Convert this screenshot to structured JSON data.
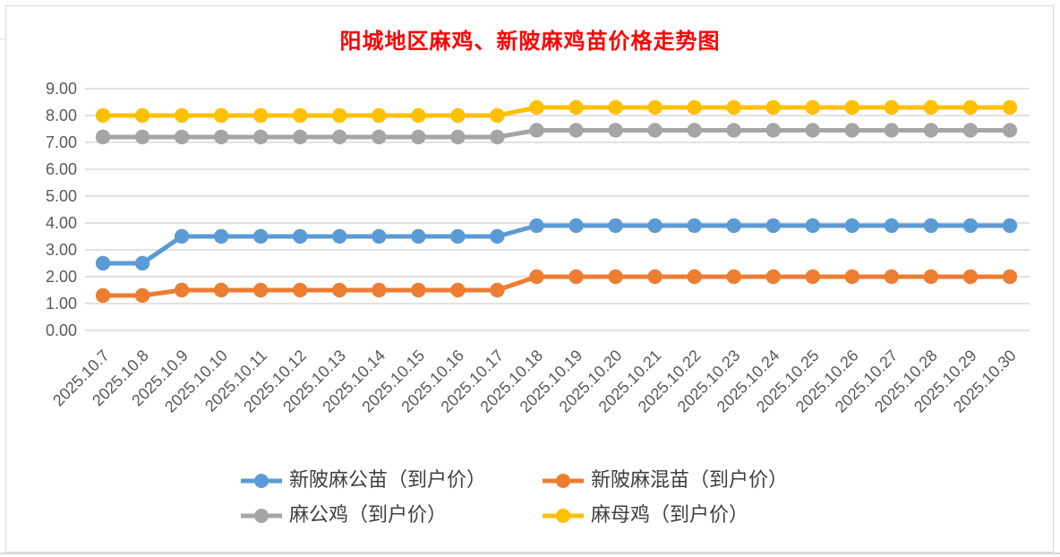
{
  "page": {
    "title": "阳城地区麻鸡、新陂麻鸡苗价格走势图"
  },
  "colors": {
    "title": "#FF0000",
    "axis_label": "#595959",
    "gridline": "#D9D9D9",
    "chart_border": "#D9D9D9",
    "background": "#FFFFFF",
    "legend_text": "#3F3F3F"
  },
  "chart_data": {
    "type": "line",
    "title": "阳城地区麻鸡、新陂麻鸡苗价格走势图",
    "xlabel": "",
    "ylabel": "",
    "ylim": [
      0,
      9
    ],
    "y_tick_step": 1,
    "y_tick_labels": [
      "0.00",
      "1.00",
      "2.00",
      "3.00",
      "4.00",
      "5.00",
      "6.00",
      "7.00",
      "8.00",
      "9.00"
    ],
    "grid": true,
    "marker": "circle",
    "legend_position": "bottom",
    "categories": [
      "2025.10.7",
      "2025.10.8",
      "2025.10.9",
      "2025.10.10",
      "2025.10.11",
      "2025.10.12",
      "2025.10.13",
      "2025.10.14",
      "2025.10.15",
      "2025.10.16",
      "2025.10.17",
      "2025.10.18",
      "2025.10.19",
      "2025.10.20",
      "2025.10.21",
      "2025.10.22",
      "2025.10.23",
      "2025.10.24",
      "2025.10.25",
      "2025.10.26",
      "2025.10.27",
      "2025.10.28",
      "2025.10.29",
      "2025.10.30"
    ],
    "series": [
      {
        "name": "新陂麻公苗（到户价）",
        "color": "#5B9BD5",
        "values": [
          2.5,
          2.5,
          3.5,
          3.5,
          3.5,
          3.5,
          3.5,
          3.5,
          3.5,
          3.5,
          3.5,
          3.9,
          3.9,
          3.9,
          3.9,
          3.9,
          3.9,
          3.9,
          3.9,
          3.9,
          3.9,
          3.9,
          3.9,
          3.9
        ]
      },
      {
        "name": "新陂麻混苗（到户价）",
        "color": "#ED7D31",
        "values": [
          1.3,
          1.3,
          1.5,
          1.5,
          1.5,
          1.5,
          1.5,
          1.5,
          1.5,
          1.5,
          1.5,
          2.0,
          2.0,
          2.0,
          2.0,
          2.0,
          2.0,
          2.0,
          2.0,
          2.0,
          2.0,
          2.0,
          2.0,
          2.0
        ]
      },
      {
        "name": "麻公鸡（到户价）",
        "color": "#A5A5A5",
        "values": [
          7.2,
          7.2,
          7.2,
          7.2,
          7.2,
          7.2,
          7.2,
          7.2,
          7.2,
          7.2,
          7.2,
          7.45,
          7.45,
          7.45,
          7.45,
          7.45,
          7.45,
          7.45,
          7.45,
          7.45,
          7.45,
          7.45,
          7.45,
          7.45
        ]
      },
      {
        "name": "麻母鸡（到户价）",
        "color": "#FFC000",
        "values": [
          8.0,
          8.0,
          8.0,
          8.0,
          8.0,
          8.0,
          8.0,
          8.0,
          8.0,
          8.0,
          8.0,
          8.3,
          8.3,
          8.3,
          8.3,
          8.3,
          8.3,
          8.3,
          8.3,
          8.3,
          8.3,
          8.3,
          8.3,
          8.3
        ]
      }
    ]
  }
}
